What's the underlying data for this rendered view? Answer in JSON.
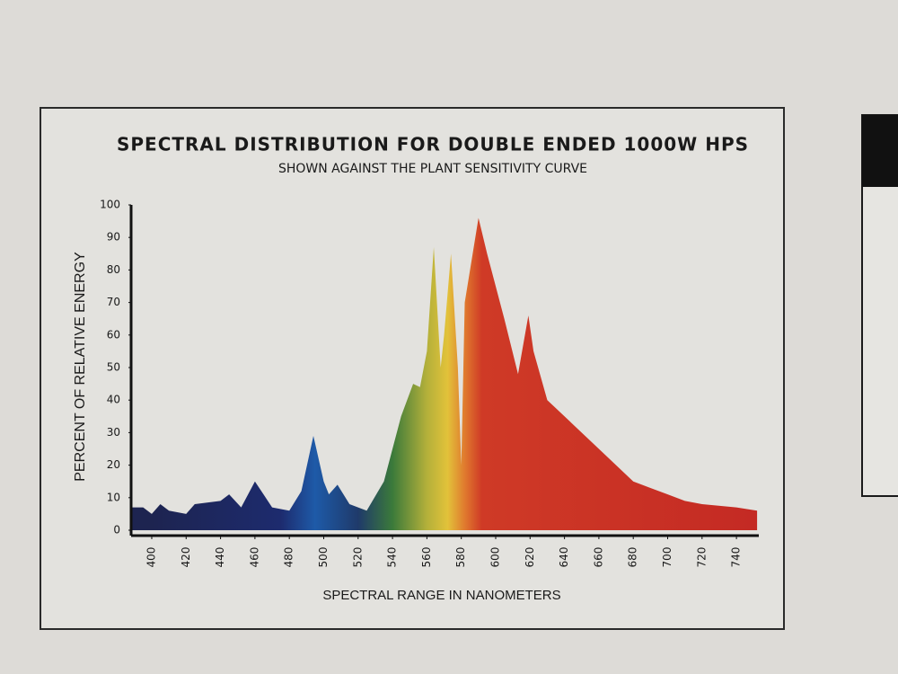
{
  "chart_data": {
    "type": "area",
    "title": "SPECTRAL DISTRIBUTION FOR DOUBLE ENDED 1000W HPS",
    "subtitle": "SHOWN AGAINST THE PLANT SENSITIVITY CURVE",
    "x_label": "SPECTRAL RANGE IN NANOMETERS",
    "y_label": "PERCENT OF RELATIVE ENERGY",
    "x": [
      388,
      395,
      400,
      405,
      410,
      420,
      425,
      440,
      445,
      452,
      460,
      465,
      470,
      480,
      487,
      494,
      500,
      503,
      508,
      515,
      525,
      535,
      545,
      552,
      556,
      560,
      564,
      568,
      570,
      574,
      578,
      580,
      582,
      590,
      595,
      605,
      613,
      619,
      622,
      630,
      640,
      660,
      670,
      680,
      690,
      700,
      710,
      720,
      740,
      752
    ],
    "values": [
      7,
      7,
      5,
      8,
      6,
      5,
      8,
      9,
      11,
      7,
      15,
      11,
      7,
      6,
      12,
      29,
      15,
      11,
      14,
      8,
      6,
      15,
      35,
      45,
      44,
      55,
      87,
      50,
      60,
      85,
      50,
      20,
      70,
      96,
      85,
      65,
      48,
      66,
      55,
      40,
      35,
      25,
      20,
      15,
      13,
      11,
      9,
      8,
      7,
      6
    ],
    "color_stops": [
      {
        "nm": 400,
        "color": "#1d2450"
      },
      {
        "nm": 475,
        "color": "#1d2b6e"
      },
      {
        "nm": 495,
        "color": "#1e5aa8"
      },
      {
        "nm": 520,
        "color": "#1f3a6a"
      },
      {
        "nm": 540,
        "color": "#3b7a3a"
      },
      {
        "nm": 560,
        "color": "#b4b03a"
      },
      {
        "nm": 572,
        "color": "#e2c23a"
      },
      {
        "nm": 582,
        "color": "#e07a2e"
      },
      {
        "nm": 592,
        "color": "#cf3a26"
      },
      {
        "nm": 752,
        "color": "#c42a24"
      }
    ],
    "xlim": [
      388,
      753
    ],
    "ylim": [
      0,
      100
    ],
    "xticks": [
      400,
      420,
      440,
      460,
      480,
      500,
      520,
      540,
      560,
      580,
      600,
      620,
      640,
      660,
      680,
      700,
      720,
      740
    ],
    "yticks": [
      0,
      10,
      20,
      30,
      40,
      50,
      60,
      70,
      80,
      90,
      100
    ],
    "grid": false
  }
}
